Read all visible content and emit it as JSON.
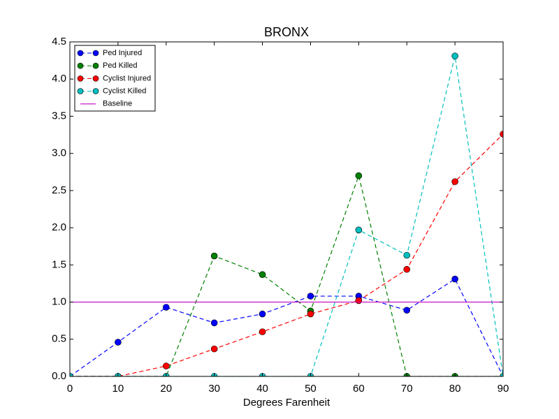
{
  "chart_data": {
    "type": "line",
    "title": "BRONX",
    "xlabel": "Degrees Farenheit",
    "x": [
      0,
      10,
      20,
      30,
      40,
      50,
      60,
      70,
      80,
      90
    ],
    "series": [
      {
        "name": "Ped Injured",
        "color": "#0000ff",
        "values": [
          0,
          0.46,
          0.93,
          0.72,
          0.84,
          1.08,
          1.08,
          0.89,
          1.31,
          0
        ]
      },
      {
        "name": "Ped Killed",
        "color": "#008000",
        "values": [
          0,
          0,
          0,
          1.62,
          1.37,
          0.88,
          2.7,
          0,
          0,
          0
        ]
      },
      {
        "name": "Cyclist Injured",
        "color": "#ff0000",
        "values": [
          0,
          0,
          0.14,
          0.37,
          0.6,
          0.84,
          1.02,
          1.44,
          2.62,
          3.26
        ]
      },
      {
        "name": "Cyclist Killed",
        "color": "#00bfbf",
        "values": [
          0,
          0,
          0,
          0,
          0,
          0,
          1.97,
          1.63,
          4.31,
          0
        ]
      }
    ],
    "baseline": {
      "name": "Baseline",
      "color": "#bf00bf",
      "value": 1.0
    },
    "xlim": [
      0,
      90
    ],
    "xticks": [
      0,
      10,
      20,
      30,
      40,
      50,
      60,
      70,
      80,
      90
    ],
    "ylim": [
      0,
      4.5
    ],
    "yticks": [
      {
        "value": 0,
        "label": "0.0"
      },
      {
        "value": 0.5,
        "label": "0.5"
      },
      {
        "value": 1,
        "label": "1.0"
      },
      {
        "value": 1.5,
        "label": "1.5"
      },
      {
        "value": 2,
        "label": "2.0"
      },
      {
        "value": 2.5,
        "label": "2.5"
      },
      {
        "value": 3,
        "label": "3.0"
      },
      {
        "value": 3.5,
        "label": "3.5"
      },
      {
        "value": 4,
        "label": "4.0"
      },
      {
        "value": 4.5,
        "label": "4.5"
      }
    ],
    "legend": "upper left"
  }
}
